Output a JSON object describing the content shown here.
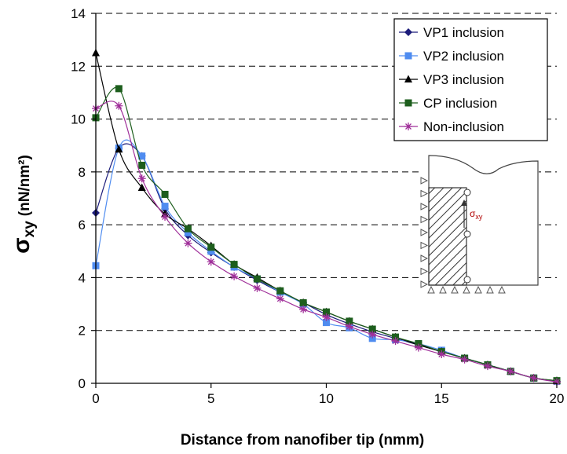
{
  "chart_data": {
    "type": "line",
    "xlabel": "Distance from nanofiber tip (nmm)",
    "ylabel": {
      "main": "σ",
      "sub": "xy",
      "units": "(nN/nm²)"
    },
    "xlim": [
      0,
      20
    ],
    "ylim": [
      0,
      14
    ],
    "xticks": [
      "0",
      "5",
      "10",
      "15",
      "20"
    ],
    "yticks": [
      "0",
      "2",
      "4",
      "6",
      "8",
      "10",
      "12",
      "14"
    ],
    "grid": "horizontal dashed",
    "legend_position": "top-right",
    "series": [
      {
        "name": "VP1 inclusion",
        "marker": "diamond",
        "color": "#1c1c7a",
        "x": [
          0,
          1,
          2,
          3,
          4,
          5,
          6,
          7,
          8,
          9,
          10,
          11,
          12,
          13,
          14,
          15,
          16,
          17,
          18,
          19,
          20
        ],
        "y": [
          6.45,
          8.9,
          8.6,
          6.6,
          5.6,
          4.95,
          4.4,
          3.9,
          3.45,
          3.05,
          2.6,
          2.25,
          1.95,
          1.7,
          1.45,
          1.2,
          0.95,
          0.7,
          0.45,
          0.2,
          0.08
        ]
      },
      {
        "name": "VP2 inclusion",
        "marker": "square",
        "color": "#4f8cf0",
        "x": [
          0,
          1,
          2,
          3,
          4,
          5,
          6,
          7,
          8,
          9,
          10,
          11,
          12,
          13,
          14,
          15,
          16,
          17,
          18,
          19,
          20
        ],
        "y": [
          4.45,
          8.9,
          8.6,
          6.7,
          5.7,
          5.0,
          4.4,
          3.95,
          3.45,
          3.0,
          2.3,
          2.1,
          1.7,
          1.65,
          1.5,
          1.25,
          0.95,
          0.7,
          0.45,
          0.2,
          0.08
        ]
      },
      {
        "name": "VP3 inclusion",
        "marker": "triangle",
        "color": "#000000",
        "x": [
          0,
          1,
          2,
          3,
          4,
          5,
          6,
          7,
          8,
          9,
          10,
          11,
          12,
          13,
          14,
          15,
          16,
          17,
          18,
          19,
          20
        ],
        "y": [
          12.5,
          8.85,
          7.4,
          6.4,
          5.85,
          5.2,
          4.5,
          4.0,
          3.5,
          3.05,
          2.7,
          2.35,
          2.05,
          1.75,
          1.45,
          1.2,
          0.95,
          0.7,
          0.45,
          0.2,
          0.1
        ]
      },
      {
        "name": "CP inclusion",
        "marker": "square",
        "color": "#1d5e1d",
        "x": [
          0,
          1,
          2,
          3,
          4,
          5,
          6,
          7,
          8,
          9,
          10,
          11,
          12,
          13,
          14,
          15,
          16,
          17,
          18,
          19,
          20
        ],
        "y": [
          10.05,
          11.15,
          8.25,
          7.15,
          5.85,
          5.15,
          4.5,
          3.95,
          3.5,
          3.05,
          2.7,
          2.35,
          2.05,
          1.75,
          1.5,
          1.2,
          0.95,
          0.7,
          0.45,
          0.2,
          0.1
        ]
      },
      {
        "name": "Non-inclusion",
        "marker": "asterisk",
        "color": "#a0309a",
        "x": [
          0,
          1,
          2,
          3,
          4,
          5,
          6,
          7,
          8,
          9,
          10,
          11,
          12,
          13,
          14,
          15,
          16,
          17,
          18,
          19,
          20
        ],
        "y": [
          10.4,
          10.5,
          7.75,
          6.3,
          5.3,
          4.6,
          4.05,
          3.6,
          3.2,
          2.8,
          2.5,
          2.15,
          1.85,
          1.6,
          1.35,
          1.1,
          0.9,
          0.65,
          0.45,
          0.2,
          0.05
        ]
      }
    ],
    "inset_label": "σxy"
  }
}
